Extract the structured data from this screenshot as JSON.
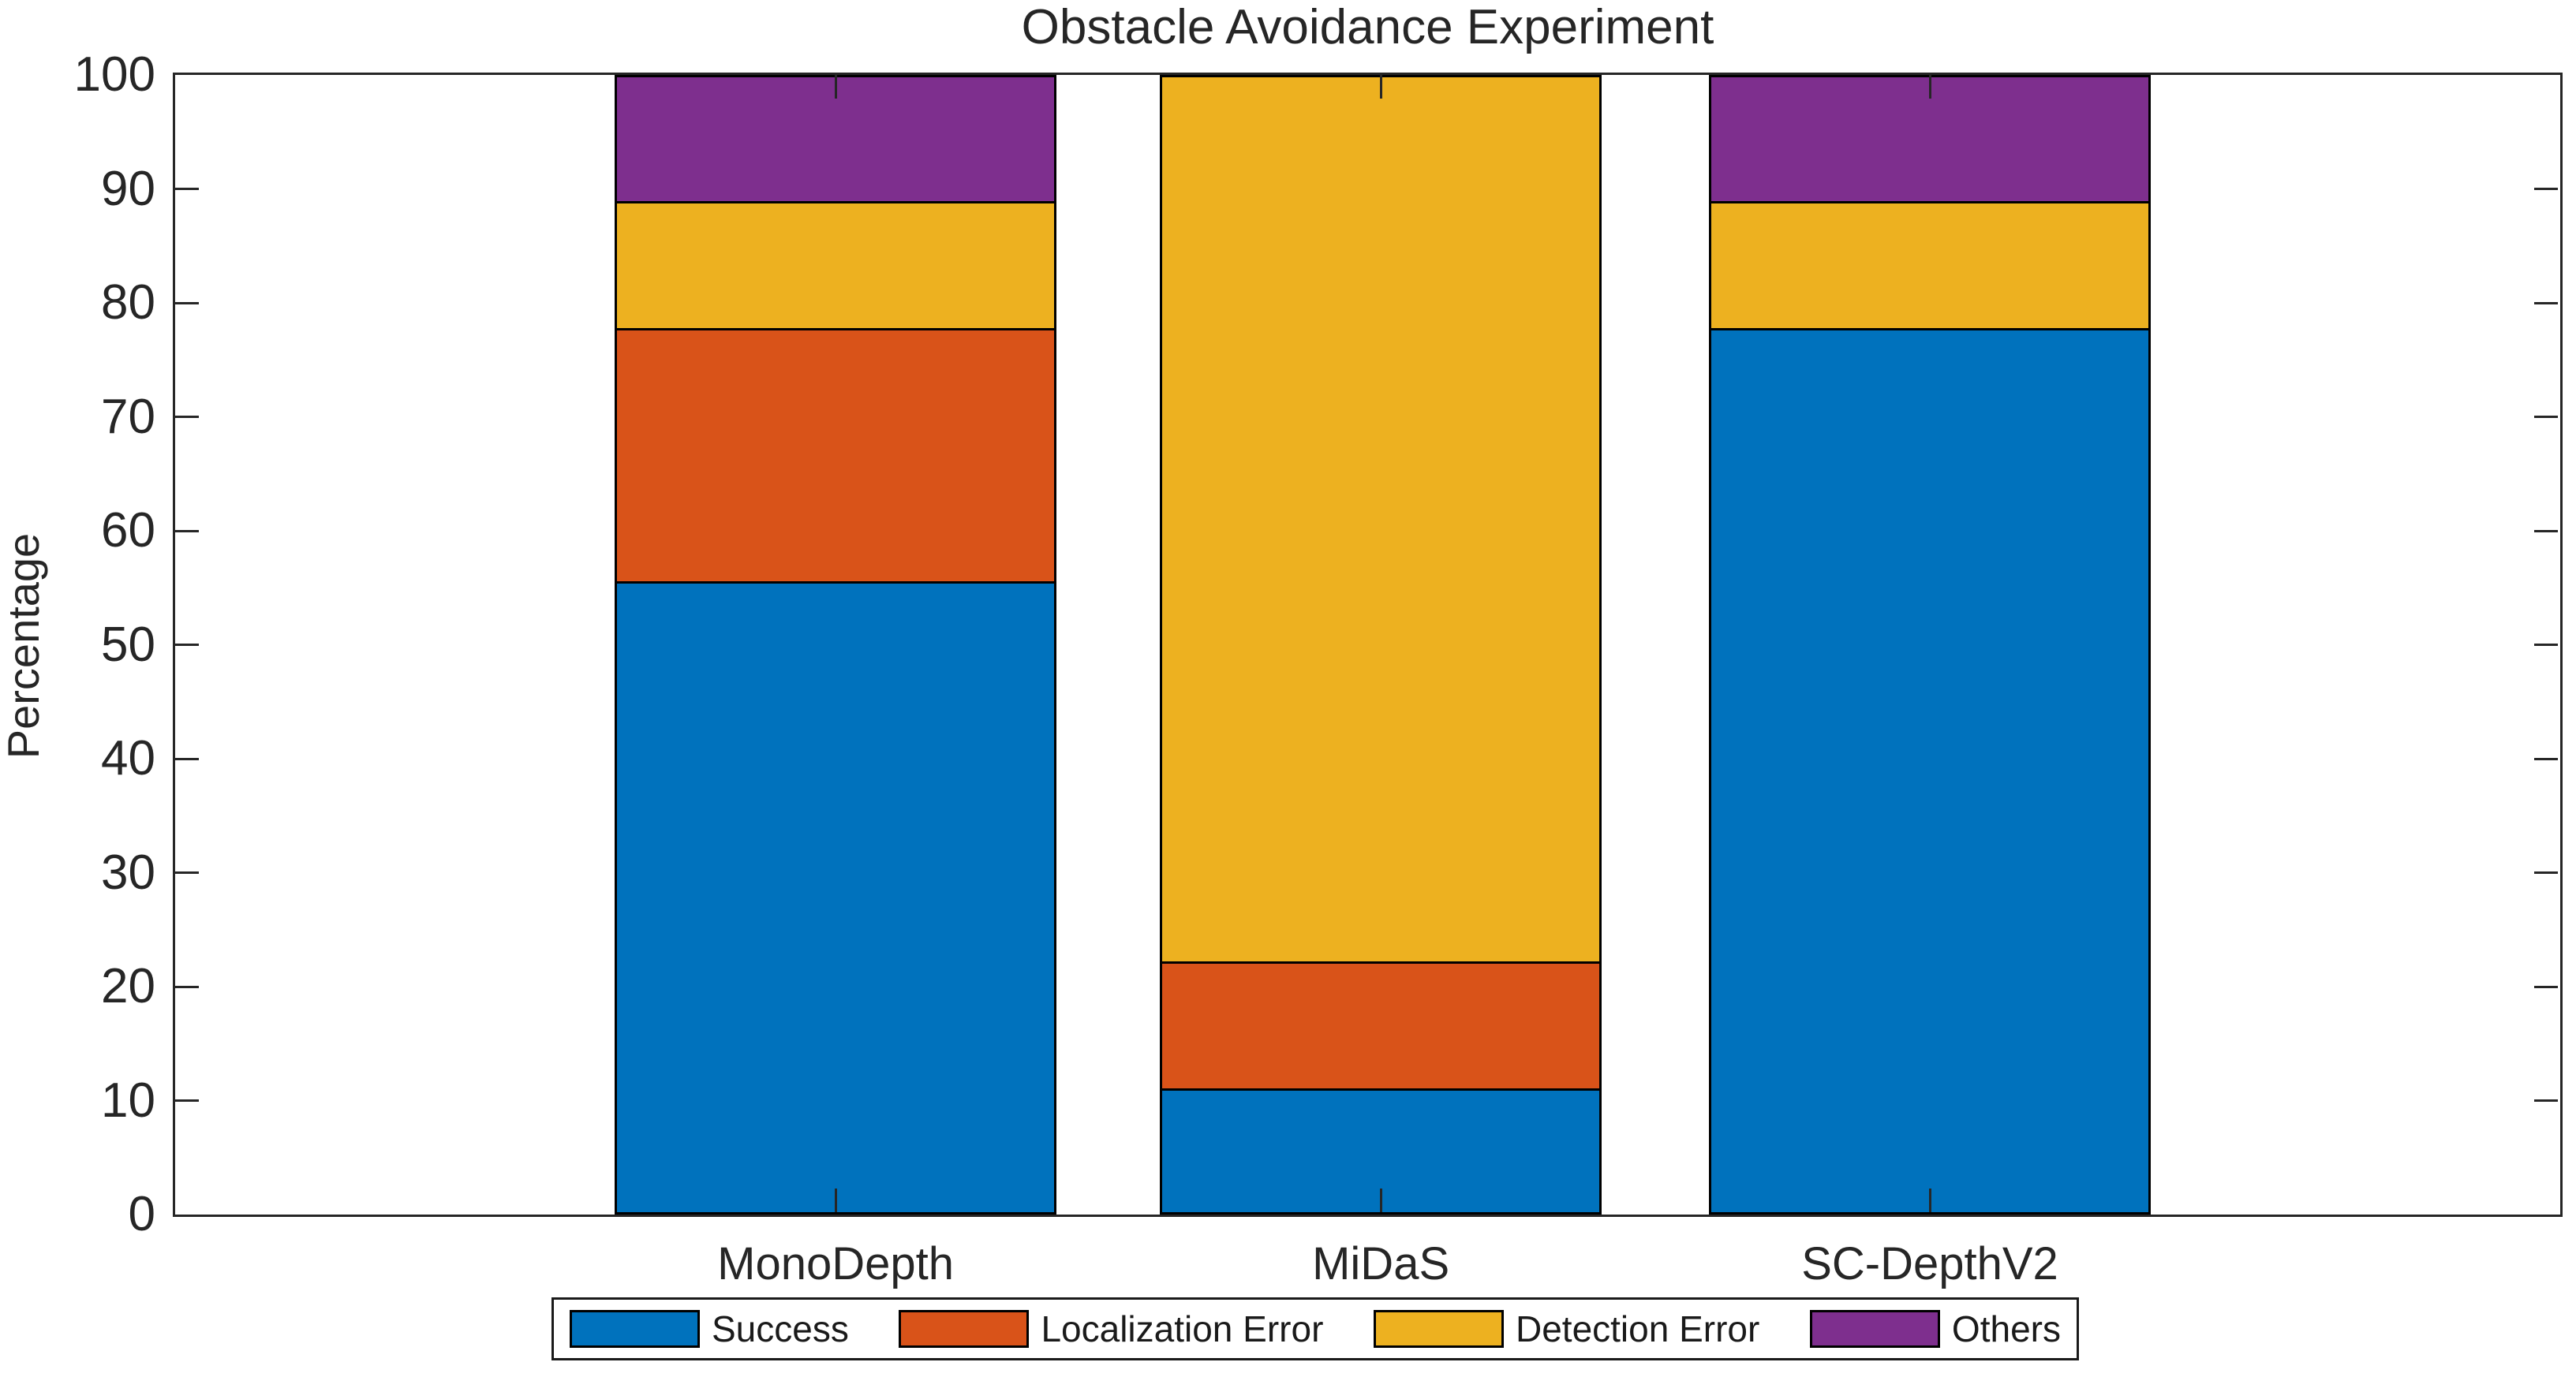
{
  "chart_data": {
    "type": "bar",
    "stacked": true,
    "title": "Obstacle Avoidance Experiment",
    "xlabel": "",
    "ylabel": "Percentage",
    "categories": [
      "MonoDepth",
      "MiDaS",
      "SC-DepthV2"
    ],
    "series": [
      {
        "name": "Success",
        "color": "#0072BD",
        "values": [
          55.6,
          11.1,
          77.8
        ]
      },
      {
        "name": "Localization Error",
        "color": "#D95319",
        "values": [
          22.2,
          11.1,
          0
        ]
      },
      {
        "name": "Detection Error",
        "color": "#EDB120",
        "values": [
          11.1,
          77.8,
          11.1
        ]
      },
      {
        "name": "Others",
        "color": "#7E2F8E",
        "values": [
          11.1,
          0,
          11.1
        ]
      }
    ],
    "ylim": [
      0,
      100
    ],
    "yticks": [
      0,
      10,
      20,
      30,
      40,
      50,
      60,
      70,
      80,
      90,
      100
    ],
    "grid": false,
    "legend": {
      "position": "bottom",
      "entries": [
        "Success",
        "Localization Error",
        "Detection Error",
        "Others"
      ]
    },
    "bar_edge_color": "#000000",
    "axis_color": "#262626"
  }
}
